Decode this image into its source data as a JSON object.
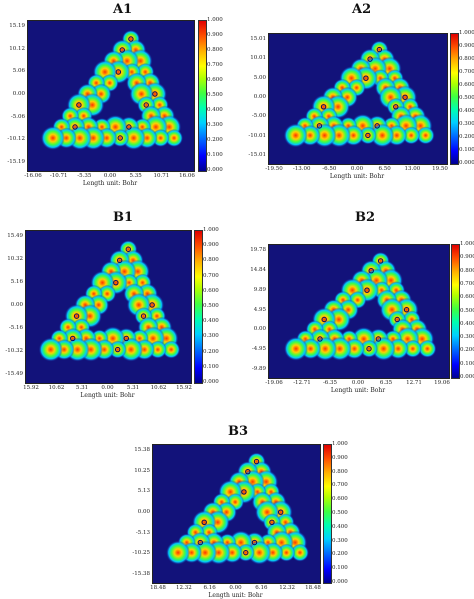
{
  "panels": [
    {
      "id": "A1",
      "title": "A1",
      "yticks": [
        "15.19",
        "10.12",
        "5.06",
        "0.00",
        "-5.06",
        "-10.12",
        "-15.19"
      ],
      "xticks": [
        "-16.06",
        "-10.71",
        "-5.35",
        "0.00",
        "5.35",
        "10.71",
        "16.06"
      ],
      "xlabel": "Length unit: Bohr"
    },
    {
      "id": "A2",
      "title": "A2",
      "yticks": [
        "15.01",
        "10.01",
        "5.00",
        "0.00",
        "-5.00",
        "-10.01",
        "-15.01"
      ],
      "xticks": [
        "-19.50",
        "-13.00",
        "-6.50",
        "0.00",
        "6.50",
        "13.00",
        "19.50"
      ],
      "xlabel": "Length unit: Bohr"
    },
    {
      "id": "B1",
      "title": "B1",
      "yticks": [
        "15.49",
        "10.32",
        "5.16",
        "0.00",
        "-5.16",
        "-10.32",
        "-15.49"
      ],
      "xticks": [
        "15.92",
        "10.62",
        "5.31",
        "0.00",
        "5.31",
        "10.62",
        "15.92"
      ],
      "xlabel": "Length unit: Bohr"
    },
    {
      "id": "B2",
      "title": "B2",
      "yticks": [
        "19.78",
        "14.84",
        "9.89",
        "4.95",
        "0.00",
        "-4.95",
        "-9.89"
      ],
      "xticks": [
        "-19.06",
        "-12.71",
        "-6.35",
        "0.00",
        "6.35",
        "12.71",
        "19.06"
      ],
      "xlabel": "Length unit: Bohr"
    },
    {
      "id": "B3",
      "title": "B3",
      "yticks": [
        "15.38",
        "10.25",
        "5.13",
        "0.00",
        "-5.13",
        "-10.25",
        "-15.38"
      ],
      "xticks": [
        "18.48",
        "12.32",
        "6.16",
        "0.00",
        "6.16",
        "12.32",
        "18.48"
      ],
      "xlabel": "Length unit: Bohr"
    }
  ],
  "colorbar": {
    "ticks": [
      "1.000",
      "0.900",
      "0.800",
      "0.700",
      "0.600",
      "0.500",
      "0.400",
      "0.300",
      "0.200",
      "0.100",
      "0.000"
    ]
  }
}
